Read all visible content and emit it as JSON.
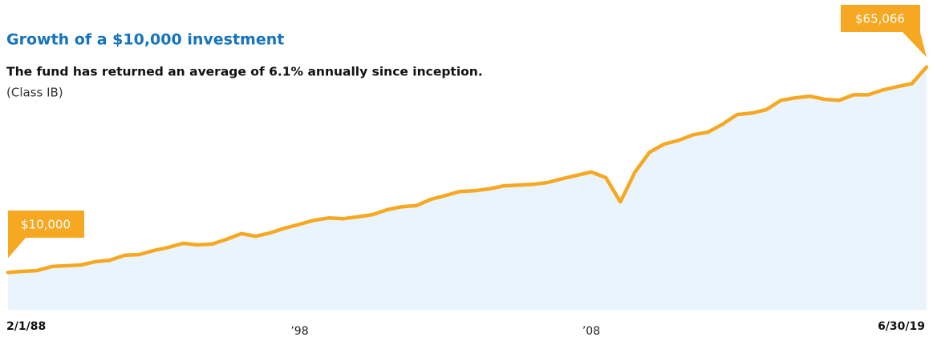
{
  "chart_data": {
    "type": "area-line",
    "title": "Growth of a $10,000 investment",
    "subtitle": "The fund has returned an average of 6.1% annually since inception.",
    "note": "(Class IB)",
    "color": "#f7a823",
    "fill_color": "#e9f4fc",
    "ylim": [
      0,
      83000
    ],
    "categories": [
      "2/1/88",
      null,
      null,
      null,
      null,
      null,
      null,
      null,
      null,
      null,
      null,
      null,
      null,
      null,
      null,
      null,
      null,
      null,
      null,
      null,
      "’98",
      null,
      null,
      null,
      null,
      null,
      null,
      null,
      null,
      null,
      null,
      null,
      null,
      null,
      null,
      null,
      null,
      null,
      null,
      null,
      "’08",
      null,
      null,
      null,
      null,
      null,
      null,
      null,
      null,
      null,
      null,
      null,
      null,
      null,
      null,
      null,
      null,
      null,
      null,
      null,
      null,
      null,
      null,
      "6/30/19"
    ],
    "values": [
      10000,
      10300,
      10500,
      11600,
      11800,
      12000,
      12900,
      13300,
      14600,
      14800,
      15900,
      16700,
      17800,
      17400,
      17600,
      18900,
      20400,
      19700,
      20600,
      21900,
      22900,
      24000,
      24600,
      24400,
      24900,
      25500,
      26800,
      27600,
      27900,
      29600,
      30600,
      31700,
      31900,
      32400,
      33200,
      33400,
      33600,
      34100,
      35100,
      36000,
      36900,
      35400,
      28900,
      36900,
      42200,
      44400,
      45400,
      46900,
      47600,
      49700,
      52300,
      52700,
      53600,
      56100,
      56800,
      57200,
      56400,
      56100,
      57600,
      57600,
      58900,
      59800,
      60600,
      65066
    ],
    "value_labels": [
      "$10,000",
      null,
      null,
      null,
      null,
      null,
      null,
      null,
      null,
      null,
      null,
      null,
      null,
      null,
      null,
      null,
      null,
      null,
      null,
      null,
      null,
      null,
      null,
      null,
      null,
      null,
      null,
      null,
      null,
      null,
      null,
      null,
      null,
      null,
      null,
      null,
      null,
      null,
      null,
      null,
      null,
      null,
      null,
      null,
      null,
      null,
      null,
      null,
      null,
      null,
      null,
      null,
      null,
      null,
      null,
      null,
      null,
      null,
      null,
      null,
      null,
      null,
      null,
      "$65,066"
    ]
  }
}
